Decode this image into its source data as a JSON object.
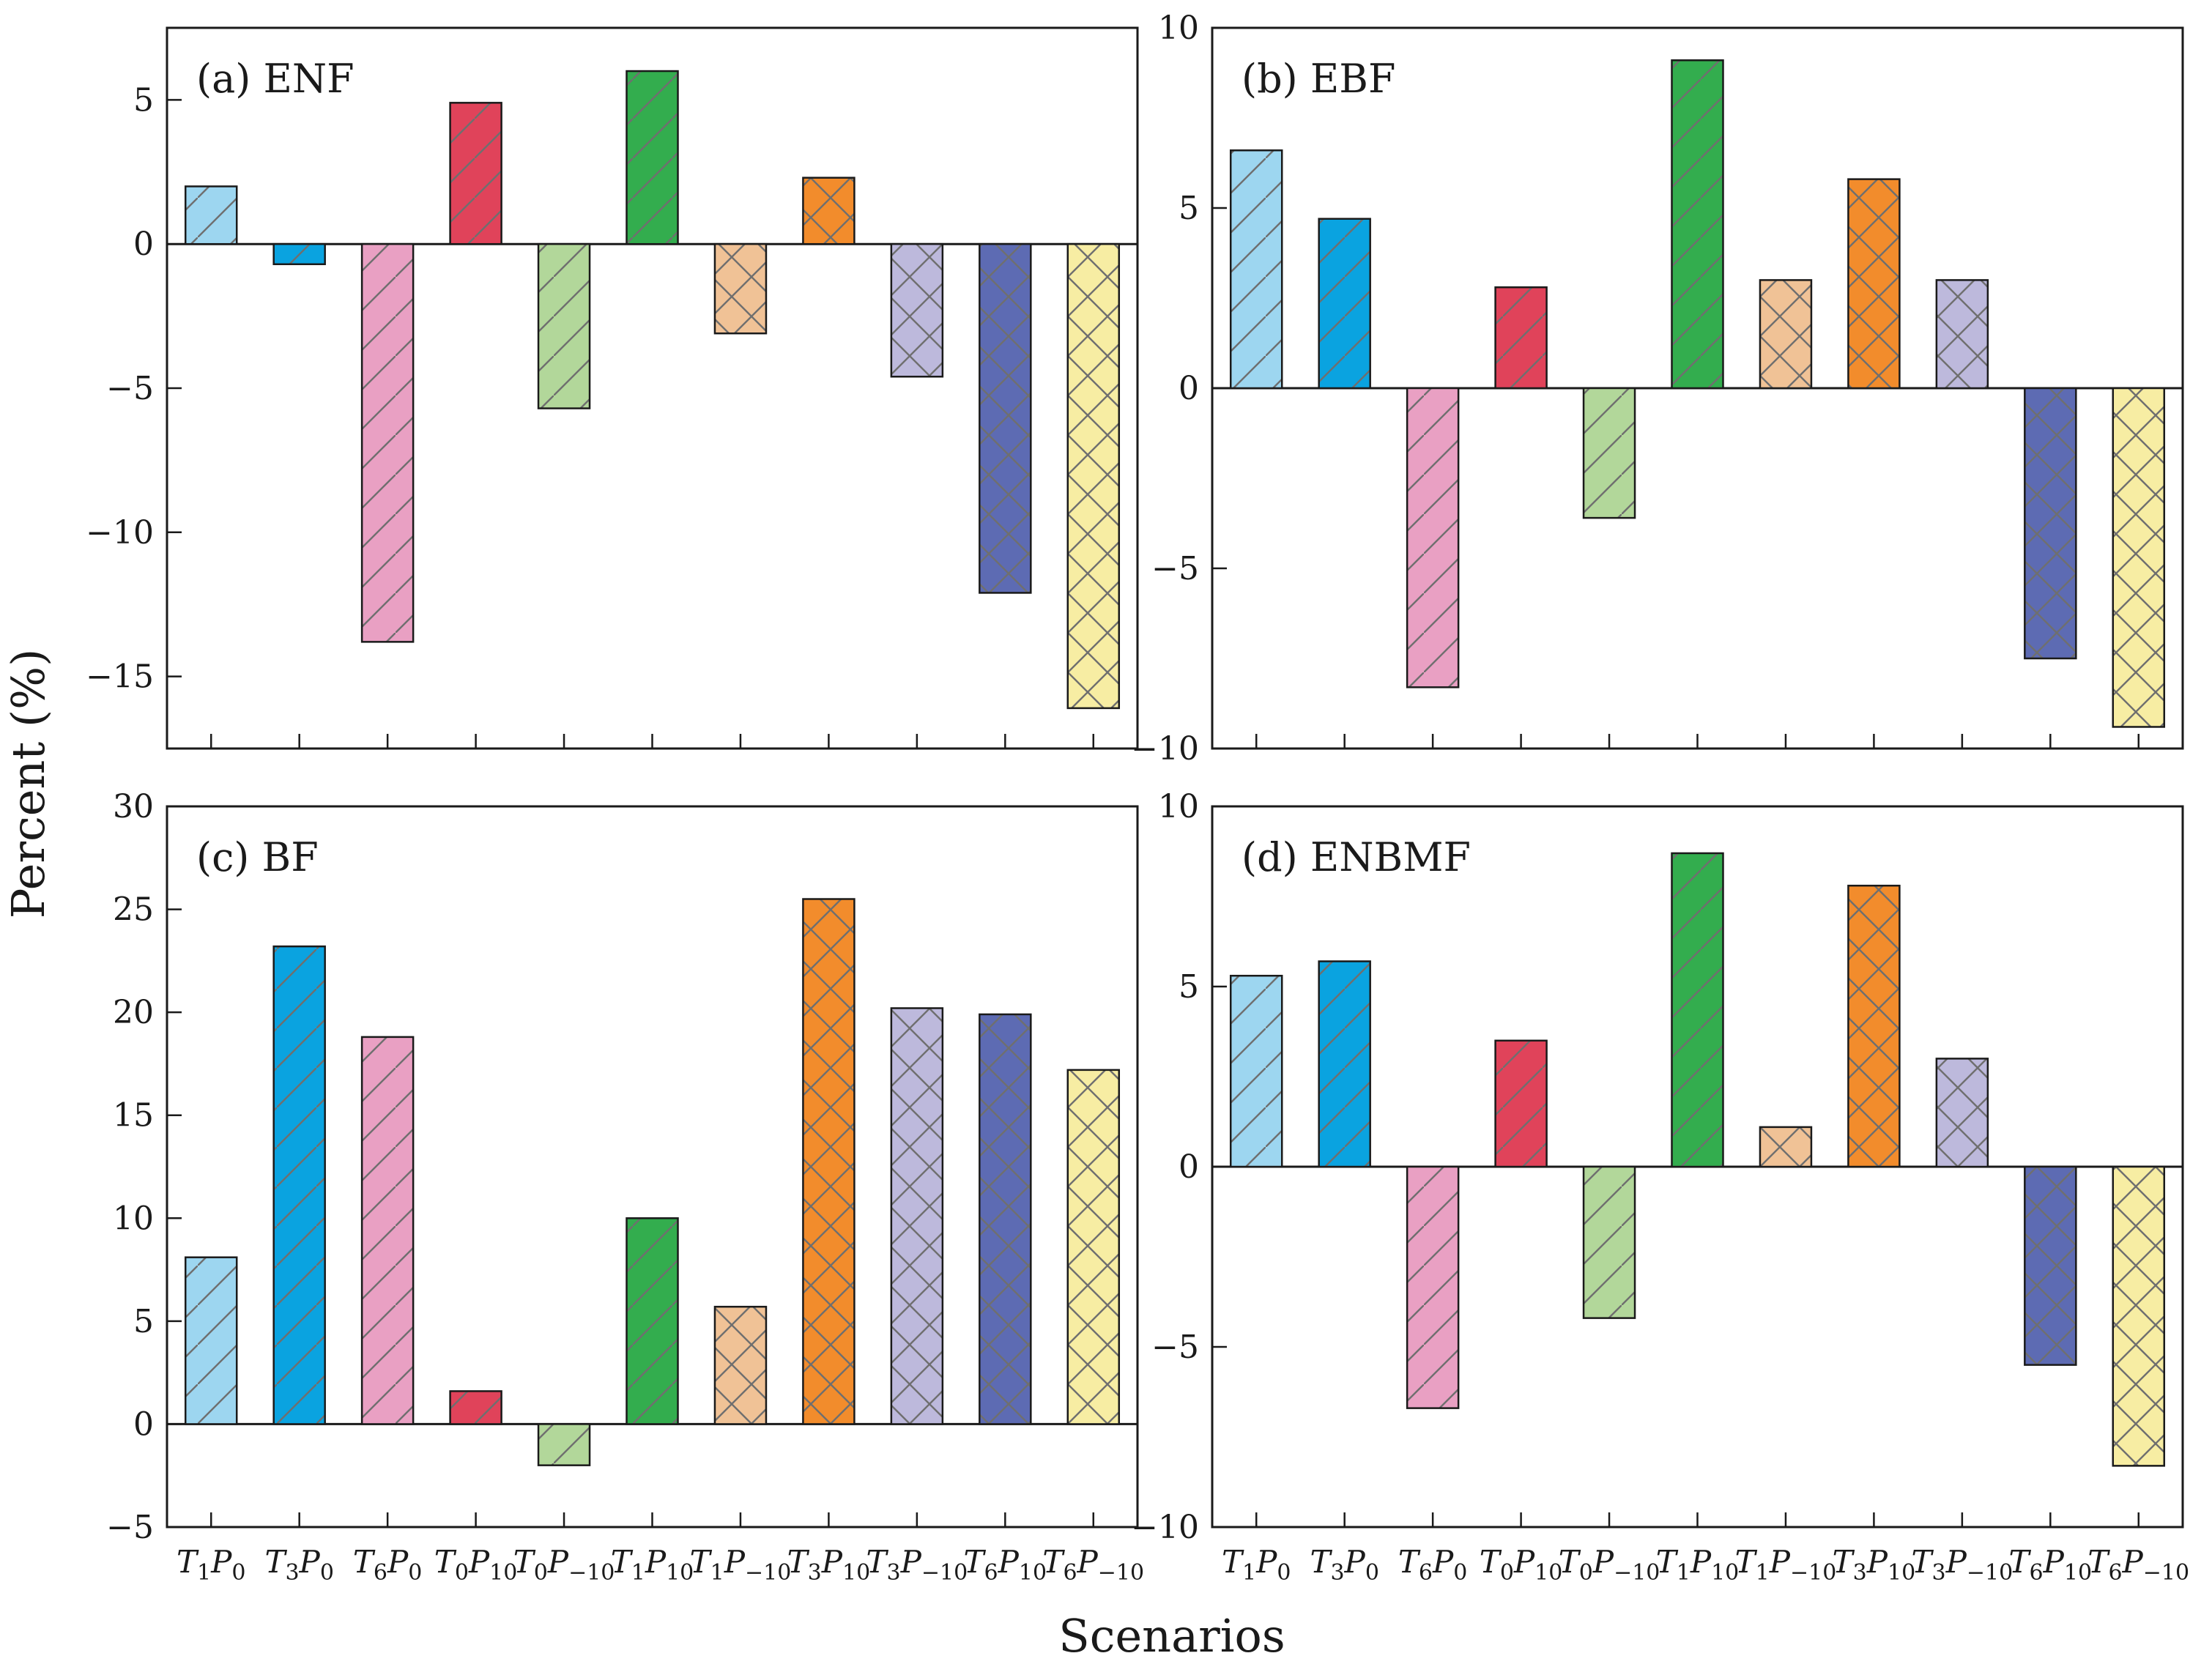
{
  "figure": {
    "ylabel": "Percent (%)",
    "xlabel": "Scenarios"
  },
  "categories": [
    {
      "t": "1",
      "p": "0"
    },
    {
      "t": "3",
      "p": "0"
    },
    {
      "t": "6",
      "p": "0"
    },
    {
      "t": "0",
      "p": "10"
    },
    {
      "t": "0",
      "p": "−10"
    },
    {
      "t": "1",
      "p": "10"
    },
    {
      "t": "1",
      "p": "−10"
    },
    {
      "t": "3",
      "p": "10"
    },
    {
      "t": "3",
      "p": "−10"
    },
    {
      "t": "6",
      "p": "10"
    },
    {
      "t": "6",
      "p": "−10"
    }
  ],
  "colors": [
    "#9dd6f0",
    "#0aa3e0",
    "#e9a0c3",
    "#e0435a",
    "#b2d79a",
    "#33ad4e",
    "#f0c296",
    "#f28c2c",
    "#bdb9dc",
    "#5d6bb3",
    "#f7eda3"
  ],
  "hatches": [
    "single",
    "single",
    "single",
    "single",
    "single",
    "single",
    "cross",
    "cross",
    "cross",
    "cross",
    "cross"
  ],
  "chart_data": [
    {
      "type": "bar",
      "title": "(a) ENF",
      "categories": [
        "T1P0",
        "T3P0",
        "T6P0",
        "T0P10",
        "T0P-10",
        "T1P10",
        "T1P-10",
        "T3P10",
        "T3P-10",
        "T6P10",
        "T6P-10"
      ],
      "values": [
        2.0,
        -0.7,
        -13.8,
        4.9,
        -5.7,
        6.0,
        -3.1,
        2.3,
        -4.6,
        -12.1,
        -16.1
      ],
      "ylim": [
        -17.5,
        7.5
      ],
      "yticks": [
        5,
        0,
        -5,
        -10,
        -15
      ]
    },
    {
      "type": "bar",
      "title": "(b) EBF",
      "categories": [
        "T1P0",
        "T3P0",
        "T6P0",
        "T0P10",
        "T0P-10",
        "T1P10",
        "T1P-10",
        "T3P10",
        "T3P-10",
        "T6P10",
        "T6P-10"
      ],
      "values": [
        6.6,
        4.7,
        -8.3,
        2.8,
        -3.6,
        9.1,
        3.0,
        5.8,
        3.0,
        -7.5,
        -9.4
      ],
      "ylim": [
        -10,
        10
      ],
      "yticks": [
        10,
        5,
        0,
        -5,
        -10
      ]
    },
    {
      "type": "bar",
      "title": "(c) BF",
      "categories": [
        "T1P0",
        "T3P0",
        "T6P0",
        "T0P10",
        "T0P-10",
        "T1P10",
        "T1P-10",
        "T3P10",
        "T3P-10",
        "T6P10",
        "T6P-10"
      ],
      "values": [
        8.1,
        23.2,
        18.8,
        1.6,
        -2.0,
        10.0,
        5.7,
        25.5,
        20.2,
        19.9,
        17.2
      ],
      "ylim": [
        -5,
        30
      ],
      "yticks": [
        30,
        25,
        20,
        15,
        10,
        5,
        0,
        -5
      ]
    },
    {
      "type": "bar",
      "title": "(d) ENBMF",
      "categories": [
        "T1P0",
        "T3P0",
        "T6P0",
        "T0P10",
        "T0P-10",
        "T1P10",
        "T1P-10",
        "T3P10",
        "T3P-10",
        "T6P10",
        "T6P-10"
      ],
      "values": [
        5.3,
        5.7,
        -6.7,
        3.5,
        -4.2,
        8.7,
        1.1,
        7.8,
        3.0,
        -5.5,
        -8.3
      ],
      "ylim": [
        -10,
        10
      ],
      "yticks": [
        10,
        5,
        0,
        -5,
        -10
      ]
    }
  ]
}
